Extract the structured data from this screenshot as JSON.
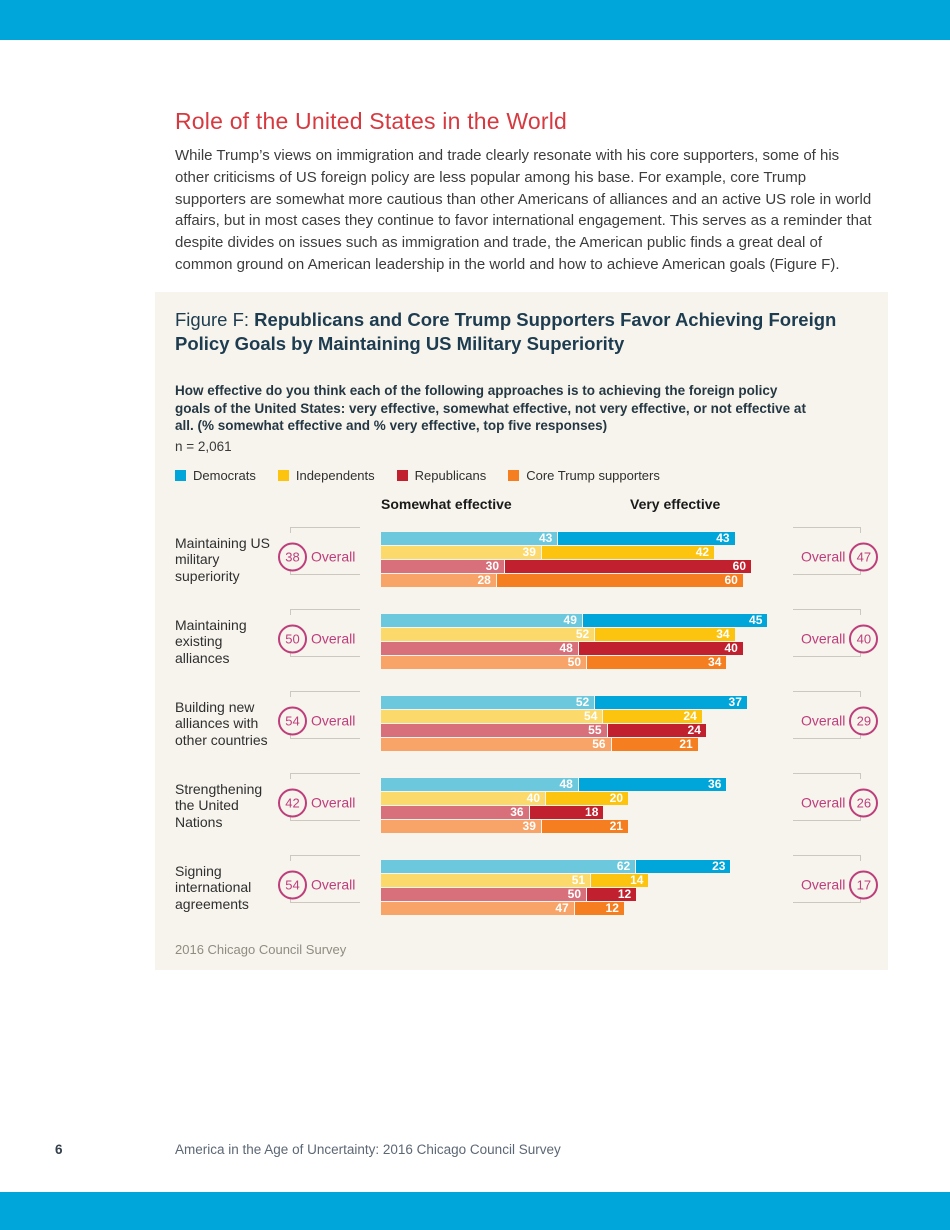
{
  "page": {
    "title": "Role of the United States in the World",
    "intro": "While Trump’s views on immigration and trade clearly resonate with his core supporters, some of his other criticisms of US foreign policy are less popular among his base. For example, core Trump supporters are somewhat more cautious than other Americans of alliances and an active US role in world affairs, but in most cases they continue to favor international engagement. This serves as a reminder that despite divides on issues such as immigration and trade, the American public finds a great deal of common ground on American leadership in the world and how to achieve American goals (Figure F).",
    "accent_color": "#00A6D9",
    "title_color": "#D6393F"
  },
  "figure": {
    "label_prefix": "Figure F: ",
    "title": "Republicans and Core Trump Supporters Favor Achieving Foreign Policy Goals by Maintaining US Military Superiority",
    "question": "How effective do you think each of the following approaches is to achieving the foreign policy goals of the United States: very effective, somewhat effective, not very effective, or not effective at all. (% somewhat effective and % very effective, top five responses)",
    "sample_size": "n = 2,061",
    "col_somewhat": "Somewhat effective",
    "col_very": "Very effective",
    "overall_label": "Overall",
    "source": "2016 Chicago Council Survey",
    "background_color": "#F7F4ED",
    "overall_accent_color": "#BE3D7B"
  },
  "chart_data": {
    "type": "bar",
    "title": "Republicans and Core Trump Supporters Favor Achieving Foreign Policy Goals by Maintaining US Military Superiority",
    "subtitle": "% somewhat effective and % very effective, top five responses",
    "legend_position": "top",
    "series_groups": [
      "Democrats",
      "Independents",
      "Republicans",
      "Core Trump supporters"
    ],
    "measures": [
      "Somewhat effective",
      "Very effective"
    ],
    "colors": {
      "somewhat": [
        "#6CC9DD",
        "#FBD96B",
        "#D8707B",
        "#F8A469"
      ],
      "very": [
        "#00A6D9",
        "#FDC40F",
        "#C1202E",
        "#F57E20"
      ]
    },
    "axis_max_percent": 100,
    "rows": [
      {
        "label": "Maintaining US military superiority",
        "overall_somewhat": 38,
        "overall_very": 47,
        "somewhat": [
          43,
          39,
          30,
          28
        ],
        "very": [
          43,
          42,
          60,
          60
        ]
      },
      {
        "label": "Maintaining existing alliances",
        "overall_somewhat": 50,
        "overall_very": 40,
        "somewhat": [
          49,
          52,
          48,
          50
        ],
        "very": [
          45,
          34,
          40,
          34
        ]
      },
      {
        "label": "Building new alliances with other countries",
        "overall_somewhat": 54,
        "overall_very": 29,
        "somewhat": [
          52,
          54,
          55,
          56
        ],
        "very": [
          37,
          24,
          24,
          21
        ]
      },
      {
        "label": "Strengthening the United Nations",
        "overall_somewhat": 42,
        "overall_very": 26,
        "somewhat": [
          48,
          40,
          36,
          39
        ],
        "very": [
          36,
          20,
          18,
          21
        ]
      },
      {
        "label": "Signing international agreements",
        "overall_somewhat": 54,
        "overall_very": 17,
        "somewhat": [
          62,
          51,
          50,
          47
        ],
        "very": [
          23,
          14,
          12,
          12
        ]
      }
    ],
    "source": "2016 Chicago Council Survey"
  },
  "footer": {
    "page_number": "6",
    "text": "America in the Age of Uncertainty: 2016 Chicago Council Survey"
  }
}
